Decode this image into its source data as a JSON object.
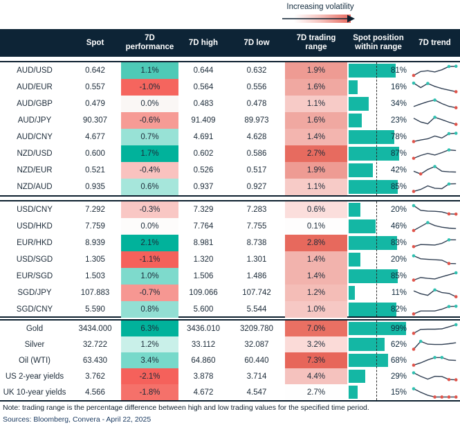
{
  "legend": {
    "label": "Increasing volatility"
  },
  "header": {
    "col_rowlabel": "",
    "col_spot": "Spot",
    "col_perf": "7D performance",
    "col_high": "7D high",
    "col_low": "7D low",
    "col_range": "7D trading range",
    "col_pos": "Spot position within range",
    "col_trend": "7D trend"
  },
  "colors": {
    "header_bg": "#0d2436",
    "text": "#1b2a38",
    "bar": "#14b7a4",
    "spark_line": "#2f3e52",
    "dot_red": "#e0534a",
    "dot_teal": "#2fc0b0",
    "volatility_high": "#e7695e"
  },
  "footer": {
    "note": "Note: trading range is the percentage difference between high and low trading values for the specified time period.",
    "sources": "Sources: Bloomberg, Convera - April 22, 2025"
  },
  "chart_data": {
    "type": "table",
    "columns": [
      "Spot",
      "7D performance",
      "7D high",
      "7D low",
      "7D trading range",
      "Spot position within range",
      "7D trend"
    ],
    "groups": [
      {
        "rows": [
          {
            "label": "AUD/USD",
            "spot": "0.642",
            "perf": "1.1%",
            "perf_bg": "#4ecab7",
            "high": "0.644",
            "low": "0.632",
            "range": "1.9%",
            "range_bg": "#ee9b93",
            "pos_pct": 81,
            "pos_label": "81%",
            "spark": {
              "values": [
                12,
                45,
                52,
                42,
                60,
                88,
                90
              ],
              "red": [
                0
              ],
              "teal": [
                5,
                6
              ]
            }
          },
          {
            "label": "AUD/EUR",
            "spot": "0.557",
            "perf": "-1.0%",
            "perf_bg": "#f5655e",
            "high": "0.564",
            "low": "0.556",
            "range": "1.6%",
            "range_bg": "#f0a8a1",
            "pos_pct": 16,
            "pos_label": "16%",
            "spark": {
              "values": [
                88,
                50,
                85,
                60,
                42,
                28,
                15
              ],
              "red": [
                6
              ],
              "teal": [
                0,
                2
              ]
            }
          },
          {
            "label": "AUD/GBP",
            "spot": "0.479",
            "perf": "0.0%",
            "perf_bg": "#faf7f5",
            "high": "0.483",
            "low": "0.478",
            "range": "1.1%",
            "range_bg": "#f7cbc7",
            "pos_pct": 34,
            "pos_label": "34%",
            "spark": {
              "values": [
                30,
                52,
                72,
                85,
                55,
                32,
                20
              ],
              "red": [
                6
              ],
              "teal": [
                3
              ]
            }
          },
          {
            "label": "AUD/JPY",
            "spot": "90.307",
            "perf": "-0.6%",
            "perf_bg": "#f69b95",
            "high": "91.409",
            "low": "89.973",
            "range": "1.6%",
            "range_bg": "#f0a8a1",
            "pos_pct": 23,
            "pos_label": "23%",
            "spark": {
              "values": [
                72,
                40,
                25,
                80,
                60,
                38,
                20
              ],
              "red": [
                6
              ],
              "teal": [
                3
              ]
            }
          },
          {
            "label": "AUD/CNY",
            "spot": "4.677",
            "perf": "0.7%",
            "perf_bg": "#98e2d6",
            "high": "4.691",
            "low": "4.628",
            "range": "1.4%",
            "range_bg": "#f3b5af",
            "pos_pct": 78,
            "pos_label": "78%",
            "spark": {
              "values": [
                15,
                28,
                38,
                62,
                45,
                82,
                85
              ],
              "red": [
                0
              ],
              "teal": [
                5,
                6
              ]
            }
          },
          {
            "label": "NZD/USD",
            "spot": "0.600",
            "perf": "1.7%",
            "perf_bg": "#01b29b",
            "high": "0.602",
            "low": "0.586",
            "range": "2.7%",
            "range_bg": "#e76b5f",
            "pos_pct": 87,
            "pos_label": "87%",
            "spark": {
              "values": [
                14,
                38,
                55,
                42,
                62,
                85,
                80
              ],
              "red": [
                0
              ],
              "teal": [
                5
              ]
            }
          },
          {
            "label": "NZD/EUR",
            "spot": "0.521",
            "perf": "-0.4%",
            "perf_bg": "#f9c2bf",
            "high": "0.526",
            "low": "0.517",
            "range": "1.9%",
            "range_bg": "#ee9b93",
            "pos_pct": 42,
            "pos_label": "42%",
            "spark": {
              "values": [
                45,
                22,
                60,
                85,
                45,
                40,
                38
              ],
              "red": [
                1
              ],
              "teal": [
                3
              ]
            }
          },
          {
            "label": "NZD/AUD",
            "spot": "0.935",
            "perf": "0.6%",
            "perf_bg": "#a6e6db",
            "high": "0.937",
            "low": "0.927",
            "range": "1.1%",
            "range_bg": "#f7cbc7",
            "pos_pct": 85,
            "pos_label": "85%",
            "spark": {
              "values": [
                15,
                32,
                62,
                42,
                38,
                78,
                80
              ],
              "red": [
                0
              ],
              "teal": [
                5
              ]
            }
          }
        ]
      },
      {
        "rows": [
          {
            "label": "USD/CNY",
            "spot": "7.292",
            "perf": "-0.3%",
            "perf_bg": "#f9c7c4",
            "high": "7.329",
            "low": "7.283",
            "range": "0.6%",
            "range_bg": "#fbdedc",
            "pos_pct": 20,
            "pos_label": "20%",
            "spark": {
              "values": [
                88,
                48,
                42,
                40,
                35,
                18,
                16
              ],
              "red": [
                5,
                6
              ],
              "teal": [
                0
              ]
            }
          },
          {
            "label": "USD/HKD",
            "spot": "7.759",
            "perf": "0.0%",
            "perf_bg": "#fdfcfb",
            "high": "7.764",
            "low": "7.755",
            "range": "0.1%",
            "range_bg": "#fefdfd",
            "pos_pct": 46,
            "pos_label": "46%",
            "spark": {
              "values": [
                18,
                52,
                85,
                60,
                46,
                38,
                35
              ],
              "red": [
                0
              ],
              "teal": [
                2
              ]
            }
          },
          {
            "label": "EUR/HKD",
            "spot": "8.939",
            "perf": "2.1%",
            "perf_bg": "#01b29b",
            "high": "8.981",
            "low": "8.738",
            "range": "2.8%",
            "range_bg": "#e7695d",
            "pos_pct": 83,
            "pos_label": "83%",
            "spark": {
              "values": [
                22,
                40,
                38,
                36,
                50,
                80,
                80
              ],
              "red": [
                0
              ],
              "teal": [
                5
              ]
            }
          },
          {
            "label": "USD/SGD",
            "spot": "1.305",
            "perf": "-1.1%",
            "perf_bg": "#f5615b",
            "high": "1.320",
            "low": "1.301",
            "range": "1.4%",
            "range_bg": "#f2b3ad",
            "pos_pct": 20,
            "pos_label": "20%",
            "spark": {
              "values": [
                85,
                60,
                55,
                52,
                48,
                20,
                19
              ],
              "red": [
                5
              ],
              "teal": [
                0
              ]
            }
          },
          {
            "label": "EUR/SGD",
            "spot": "1.503",
            "perf": "1.0%",
            "perf_bg": "#7edacc",
            "high": "1.506",
            "low": "1.486",
            "range": "1.4%",
            "range_bg": "#f2b3ad",
            "pos_pct": 85,
            "pos_label": "85%",
            "spark": {
              "values": [
                20,
                42,
                35,
                30,
                48,
                65,
                82
              ],
              "red": [
                0
              ],
              "teal": [
                6
              ]
            }
          },
          {
            "label": "SGD/JPY",
            "spot": "107.883",
            "perf": "-0.7%",
            "perf_bg": "#f69792",
            "high": "109.066",
            "low": "107.742",
            "range": "1.2%",
            "range_bg": "#f4bdb7",
            "pos_pct": 11,
            "pos_label": "11%",
            "spark": {
              "values": [
                70,
                45,
                32,
                78,
                55,
                48,
                20
              ],
              "red": [
                6
              ],
              "teal": [
                3
              ]
            }
          },
          {
            "label": "SGD/CNY",
            "spot": "5.590",
            "perf": "0.8%",
            "perf_bg": "#92dfd3",
            "high": "5.600",
            "low": "5.544",
            "range": "1.0%",
            "range_bg": "#f6c8c4",
            "pos_pct": 82,
            "pos_label": "82%",
            "spark": {
              "values": [
                15,
                40,
                40,
                40,
                55,
                78,
                80
              ],
              "red": [
                0
              ],
              "teal": [
                5,
                6
              ]
            }
          }
        ]
      },
      {
        "rows": [
          {
            "label": "Gold",
            "spot": "3434.000",
            "perf": "6.3%",
            "perf_bg": "#01b29b",
            "high": "3436.010",
            "low": "3209.780",
            "range": "7.0%",
            "range_bg": "#e97063",
            "pos_pct": 99,
            "pos_label": "99%",
            "spark": {
              "values": [
                15,
                48,
                50,
                50,
                53,
                70,
                88
              ],
              "red": [
                0
              ],
              "teal": [
                6
              ]
            }
          },
          {
            "label": "Silver",
            "spot": "32.722",
            "perf": "1.2%",
            "perf_bg": "#c9f0e9",
            "high": "33.112",
            "low": "32.087",
            "range": "3.2%",
            "range_bg": "#fbdbd8",
            "pos_pct": 62,
            "pos_label": "62%",
            "spark": {
              "values": [
                15,
                82,
                58,
                55,
                55,
                62,
                70
              ],
              "red": [
                0
              ],
              "teal": [
                1
              ]
            }
          },
          {
            "label": "Oil (WTI)",
            "spot": "63.430",
            "perf": "3.4%",
            "perf_bg": "#77d9ca",
            "high": "64.860",
            "low": "60.440",
            "range": "7.3%",
            "range_bg": "#e7665a",
            "pos_pct": 68,
            "pos_label": "68%",
            "spark": {
              "values": [
                15,
                35,
                60,
                80,
                80,
                58,
                55
              ],
              "red": [
                0
              ],
              "teal": [
                3,
                4
              ]
            }
          },
          {
            "label": "US 2-year yields",
            "spot": "3.762",
            "perf": "-2.1%",
            "perf_bg": "#f5615b",
            "high": "3.878",
            "low": "3.714",
            "range": "4.4%",
            "range_bg": "#f5c2be",
            "pos_pct": 29,
            "pos_label": "29%",
            "spark": {
              "values": [
                85,
                55,
                32,
                55,
                54,
                28,
                26
              ],
              "red": [
                5,
                6
              ],
              "teal": [
                0
              ]
            }
          },
          {
            "label": "UK 10-year yields",
            "spot": "4.566",
            "perf": "-1.8%",
            "perf_bg": "#f5716a",
            "high": "4.672",
            "low": "4.547",
            "range": "2.7%",
            "range_bg": "#fefefe",
            "pos_pct": 15,
            "pos_label": "15%",
            "spark": {
              "values": [
                85,
                55,
                30,
                15,
                15,
                15,
                15
              ],
              "red": [
                3,
                4,
                5,
                6
              ],
              "teal": [
                0
              ]
            }
          }
        ]
      }
    ]
  }
}
